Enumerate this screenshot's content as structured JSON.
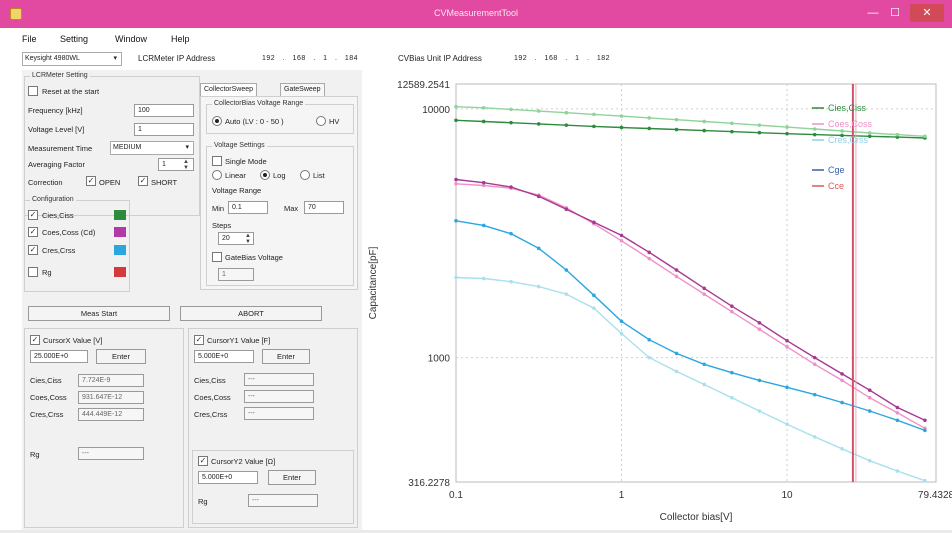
{
  "window": {
    "title": "CVMeasurementTool",
    "minimize": "—",
    "maximize": "☐",
    "close": "✕"
  },
  "menu": [
    "File",
    "Setting",
    "Window",
    "Help"
  ],
  "toolbar": {
    "instrument": "Keysight 4980WL",
    "lcr_label": "LCRMeter IP Address",
    "lcr_ip": [
      "192",
      "168",
      "1",
      "184"
    ],
    "bias_label": "CVBias Unit IP Address",
    "bias_ip": [
      "192",
      "168",
      "1",
      "182"
    ]
  },
  "lcr_setting": {
    "title": "LCRMeter Setting",
    "reset_label": "Reset at the start",
    "freq_label": "Frequency [kHz]",
    "freq_value": "100",
    "voltage_label": "Voltage Level [V]",
    "voltage_value": "1",
    "meas_time_label": "Measurement Time",
    "meas_time_value": "MEDIUM",
    "avg_label": "Averaging Factor",
    "avg_value": "1",
    "correction_label": "Correction",
    "open_label": "OPEN",
    "short_label": "SHORT"
  },
  "configuration": {
    "title": "Configuration",
    "items": [
      {
        "label": "Cies,Ciss",
        "color": "#2e8b3e",
        "checked": true
      },
      {
        "label": "Coes,Coss (Cd)",
        "color": "#b23aa8",
        "checked": true
      },
      {
        "label": "Cres,Crss",
        "color": "#2aa6e0",
        "checked": true
      },
      {
        "label": "Rg",
        "color": "#d43a3a",
        "checked": false
      }
    ]
  },
  "sweep": {
    "tabs": [
      "CollectorSweep",
      "GateSweep"
    ],
    "range_title": "CollectorBias Voltage Range",
    "range_auto": "Auto (LV : 0 - 50 )",
    "range_hv": "HV",
    "voltage_title": "Voltage Settings",
    "single_mode": "Single Mode",
    "modes": [
      "Linear",
      "Log",
      "List"
    ],
    "voltage_range_label": "Voltage Range",
    "min_label": "Min",
    "min_value": "0.1",
    "max_label": "Max",
    "max_value": "70",
    "steps_label": "Steps",
    "steps_value": "20",
    "gate_bias_label": "GateBias Voltage",
    "gate_bias_value": "1"
  },
  "actions": {
    "start": "Meas Start",
    "abort": "ABORT"
  },
  "cursor_x": {
    "label": "CursorX Value [V]",
    "value": "25.000E+0",
    "enter": "Enter",
    "rows": [
      {
        "label": "Cies,Ciss",
        "value": "7.724E-9"
      },
      {
        "label": "Coes,Coss",
        "value": "931.647E-12"
      },
      {
        "label": "Cres,Crss",
        "value": "444.449E-12"
      }
    ],
    "rg_label": "Rg",
    "rg_value": "---"
  },
  "cursor_y1": {
    "label": "CursorY1 Value [F]",
    "value": "5.000E+0",
    "enter": "Enter",
    "rows": [
      {
        "label": "Cies,Ciss",
        "value": "---"
      },
      {
        "label": "Coes,Coss",
        "value": "---"
      },
      {
        "label": "Cres,Crss",
        "value": "---"
      }
    ]
  },
  "cursor_y2": {
    "label": "CursorY2 Value [Ω]",
    "value": "5.000E+0",
    "enter": "Enter",
    "rg_label": "Rg",
    "rg_value": "---"
  },
  "chart_data": {
    "type": "line",
    "xlabel": "Collector bias[V]",
    "ylabel": "Capacitance[pF]",
    "x_scale": "log",
    "y_scale": "log",
    "xlim": [
      0.1,
      79.4328
    ],
    "ylim": [
      316.2278,
      12589.2541
    ],
    "x_tick_labels": [
      "0.1",
      "1",
      "10",
      "79.4328"
    ],
    "y_tick_labels": [
      "12589.2541",
      "10000",
      "1000",
      "316.2278"
    ],
    "cursor_x": 25,
    "grid": true,
    "legend_position": "right",
    "series": [
      {
        "name": "Cies,Ciss",
        "color": "#2e8b3e",
        "marker": true,
        "x": [
          0.1,
          0.147,
          0.215,
          0.316,
          0.464,
          0.681,
          1,
          1.47,
          2.15,
          3.16,
          4.64,
          6.81,
          10,
          14.7,
          21.5,
          31.6,
          46.4,
          68.1
        ],
        "y": [
          9000,
          8900,
          8800,
          8700,
          8600,
          8500,
          8420,
          8340,
          8260,
          8180,
          8100,
          8020,
          7950,
          7880,
          7820,
          7760,
          7700,
          7640
        ]
      },
      {
        "name": "Cies,Ciss",
        "color": "#8fd39b",
        "marker": true,
        "x": [
          0.1,
          0.147,
          0.215,
          0.316,
          0.464,
          0.681,
          1,
          1.47,
          2.15,
          3.16,
          4.64,
          6.81,
          10,
          14.7,
          21.5,
          31.6,
          46.4,
          68.1
        ],
        "y": [
          10200,
          10100,
          9950,
          9800,
          9650,
          9500,
          9350,
          9200,
          9050,
          8900,
          8750,
          8600,
          8450,
          8300,
          8150,
          8000,
          7880,
          7760
        ]
      },
      {
        "name": "Coes,Coss",
        "color": "#f090c8",
        "marker": true,
        "x": [
          0.1,
          0.147,
          0.215,
          0.316,
          0.464,
          0.681,
          1,
          1.47,
          2.15,
          3.16,
          4.64,
          6.81,
          10,
          14.7,
          21.5,
          31.6,
          46.4,
          68.1
        ],
        "y": [
          5000,
          4920,
          4800,
          4500,
          4000,
          3450,
          2950,
          2500,
          2120,
          1800,
          1530,
          1300,
          1105,
          940,
          810,
          690,
          600,
          520
        ]
      },
      {
        "name": "Cres,Crss",
        "color": "#a8e0ee",
        "marker": true,
        "x": [
          0.1,
          0.147,
          0.215,
          0.316,
          0.464,
          0.681,
          1,
          1.47,
          2.15,
          3.16,
          4.64,
          6.81,
          10,
          14.7,
          21.5,
          31.6,
          46.4,
          68.1
        ],
        "y": [
          2100,
          2080,
          2020,
          1930,
          1800,
          1580,
          1250,
          1000,
          880,
          780,
          690,
          610,
          540,
          480,
          430,
          385,
          350,
          320
        ]
      },
      {
        "name": "Cge",
        "color": "#2aa6e0",
        "marker": true,
        "x": [
          0.1,
          0.147,
          0.215,
          0.316,
          0.464,
          0.681,
          1,
          1.47,
          2.15,
          3.16,
          4.64,
          6.81,
          10,
          14.7,
          21.5,
          31.6,
          46.4,
          68.1
        ],
        "y": [
          3550,
          3400,
          3150,
          2750,
          2250,
          1780,
          1400,
          1180,
          1040,
          940,
          870,
          810,
          760,
          710,
          660,
          610,
          560,
          510
        ]
      },
      {
        "name": "Cce",
        "color": "#a63a92",
        "marker": true,
        "x": [
          0.1,
          0.147,
          0.215,
          0.316,
          0.464,
          0.681,
          1,
          1.47,
          2.15,
          3.16,
          4.64,
          6.81,
          10,
          14.7,
          21.5,
          31.6,
          46.4,
          68.1
        ],
        "y": [
          5200,
          5050,
          4850,
          4450,
          3950,
          3500,
          3100,
          2650,
          2250,
          1900,
          1610,
          1380,
          1170,
          1000,
          860,
          740,
          630,
          560
        ]
      }
    ],
    "legend": [
      {
        "label": "Cies,Ciss",
        "color": "#2e8b3e"
      },
      {
        "label": "Coes,Coss",
        "color": "#f090c8"
      },
      {
        "label": "Cres,Crss",
        "color": "#8fd0e8"
      },
      {
        "label": "Cge",
        "color": "#3a5fa8"
      },
      {
        "label": "Cce",
        "color": "#d65a5a"
      }
    ]
  }
}
